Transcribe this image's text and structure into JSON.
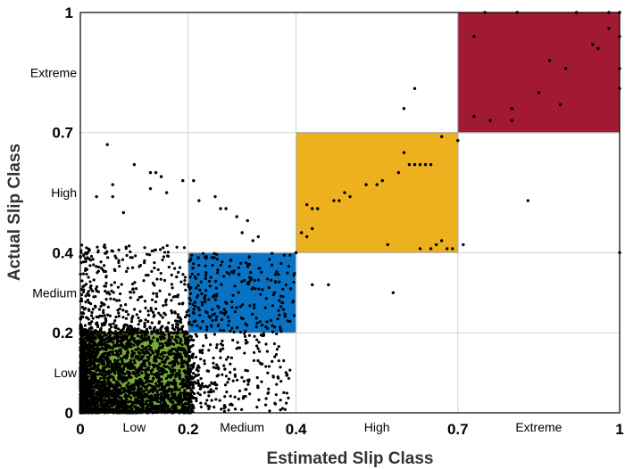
{
  "chart_data": {
    "type": "scatter",
    "title": "",
    "xlabel": "Estimated Slip Class",
    "ylabel": "Actual Slip Class",
    "xlim": [
      0,
      1
    ],
    "ylim": [
      0,
      1
    ],
    "grid": true,
    "boundaries": [
      0,
      0.2,
      0.4,
      0.7,
      1
    ],
    "tick_labels": [
      "0",
      "0.2",
      "0.4",
      "0.7",
      "1"
    ],
    "class_labels": [
      "Low",
      "Medium",
      "High",
      "Extreme"
    ],
    "class_regions": [
      {
        "name": "Low",
        "x": [
          0,
          0.2
        ],
        "y": [
          0,
          0.2
        ],
        "color": "#76a83a"
      },
      {
        "name": "Medium",
        "x": [
          0.2,
          0.4
        ],
        "y": [
          0.2,
          0.4
        ],
        "color": "#0872c4"
      },
      {
        "name": "High",
        "x": [
          0.4,
          0.7
        ],
        "y": [
          0.4,
          0.7
        ],
        "color": "#edb11f"
      },
      {
        "name": "Extreme",
        "x": [
          0.7,
          1.0
        ],
        "y": [
          0.7,
          1.0
        ],
        "color": "#a11a31"
      }
    ],
    "points": [
      [
        0.92,
        1.0
      ],
      [
        0.98,
        1.0
      ],
      [
        1.0,
        1.0
      ],
      [
        0.75,
        1.0
      ],
      [
        0.81,
        1.0
      ],
      [
        0.73,
        0.94
      ],
      [
        0.98,
        0.96
      ],
      [
        1.0,
        0.94
      ],
      [
        0.95,
        0.92
      ],
      [
        0.87,
        0.88
      ],
      [
        0.9,
        0.86
      ],
      [
        0.85,
        0.8
      ],
      [
        1.0,
        0.86
      ],
      [
        0.96,
        0.91
      ],
      [
        0.89,
        0.77
      ],
      [
        0.8,
        0.73
      ],
      [
        0.8,
        0.76
      ],
      [
        0.76,
        0.73
      ],
      [
        1.0,
        0.81
      ],
      [
        0.73,
        0.74
      ],
      [
        0.62,
        0.81
      ],
      [
        0.6,
        0.76
      ],
      [
        0.7,
        0.68
      ],
      [
        0.67,
        0.69
      ],
      [
        0.64,
        0.62
      ],
      [
        0.62,
        0.62
      ],
      [
        0.63,
        0.62
      ],
      [
        0.65,
        0.62
      ],
      [
        0.61,
        0.62
      ],
      [
        0.59,
        0.6
      ],
      [
        0.55,
        0.57
      ],
      [
        0.5,
        0.54
      ],
      [
        0.48,
        0.53
      ],
      [
        0.44,
        0.51
      ],
      [
        0.43,
        0.51
      ],
      [
        0.42,
        0.52
      ],
      [
        0.47,
        0.53
      ],
      [
        0.49,
        0.55
      ],
      [
        0.53,
        0.57
      ],
      [
        0.56,
        0.58
      ],
      [
        0.6,
        0.65
      ],
      [
        0.69,
        0.41
      ],
      [
        0.68,
        0.41
      ],
      [
        0.67,
        0.43
      ],
      [
        0.66,
        0.42
      ],
      [
        0.65,
        0.41
      ],
      [
        0.43,
        0.46
      ],
      [
        0.41,
        0.45
      ],
      [
        0.42,
        0.44
      ],
      [
        0.57,
        0.42
      ],
      [
        0.63,
        0.41
      ],
      [
        0.71,
        0.42
      ],
      [
        0.83,
        0.53
      ],
      [
        1.0,
        0.4
      ],
      [
        0.36,
        0.3
      ],
      [
        0.39,
        0.31
      ],
      [
        0.43,
        0.32
      ],
      [
        0.46,
        0.32
      ],
      [
        0.58,
        0.3
      ],
      [
        0.4,
        0.4
      ],
      [
        0.05,
        0.67
      ],
      [
        0.06,
        0.57
      ],
      [
        0.03,
        0.54
      ],
      [
        0.1,
        0.62
      ],
      [
        0.13,
        0.6
      ],
      [
        0.14,
        0.6
      ],
      [
        0.15,
        0.59
      ],
      [
        0.13,
        0.56
      ],
      [
        0.16,
        0.55
      ],
      [
        0.19,
        0.58
      ],
      [
        0.21,
        0.58
      ],
      [
        0.06,
        0.54
      ],
      [
        0.08,
        0.5
      ],
      [
        0.25,
        0.54
      ],
      [
        0.27,
        0.51
      ],
      [
        0.31,
        0.48
      ],
      [
        0.3,
        0.45
      ],
      [
        0.26,
        0.51
      ],
      [
        0.29,
        0.49
      ],
      [
        0.32,
        0.43
      ],
      [
        0.33,
        0.44
      ],
      [
        0.22,
        0.53
      ]
    ]
  }
}
